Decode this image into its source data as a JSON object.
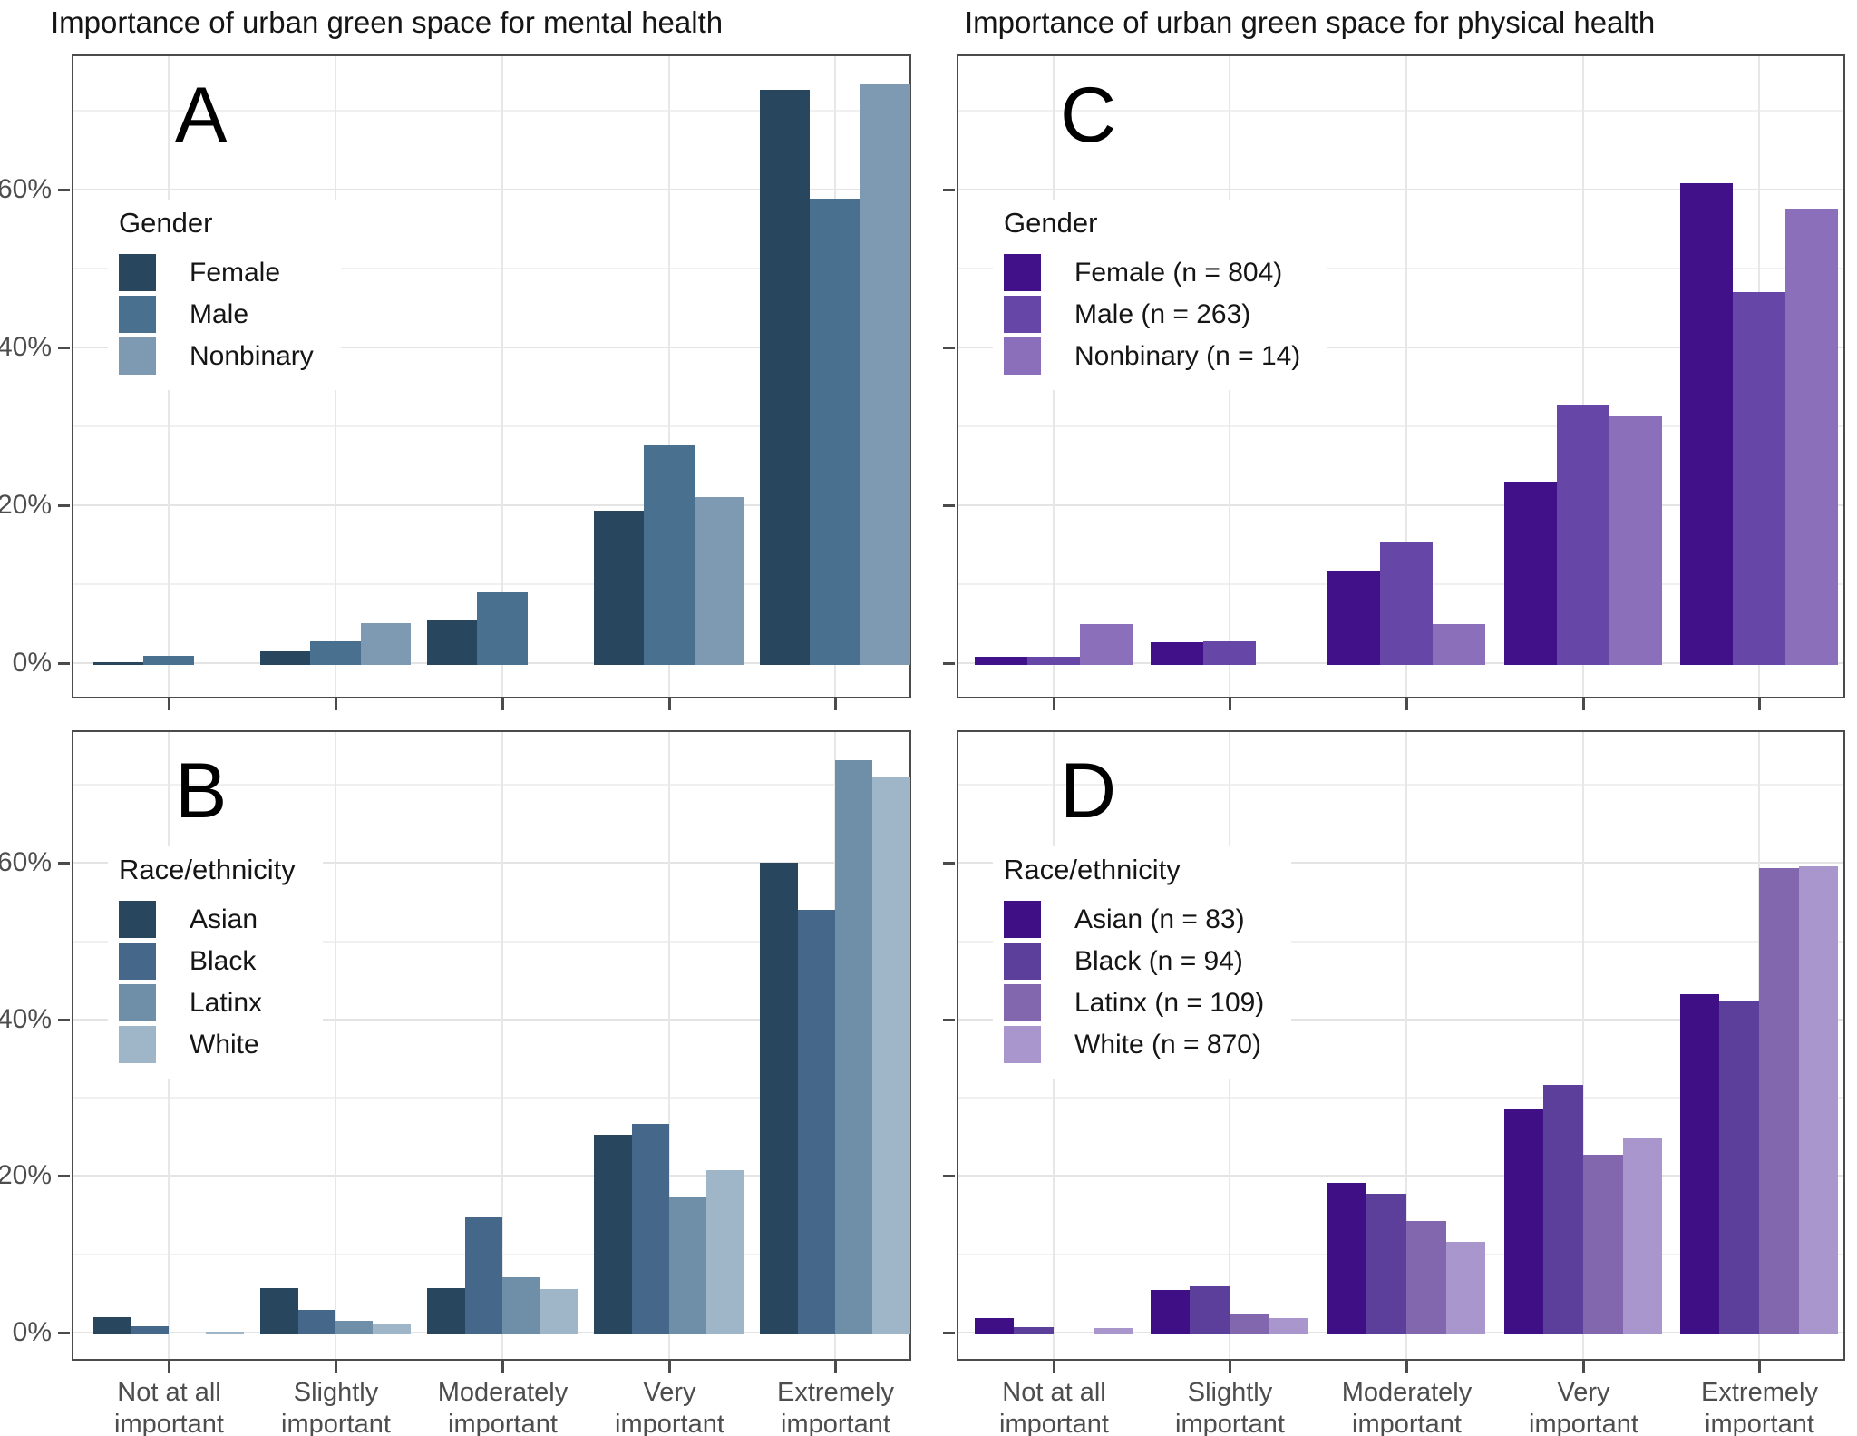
{
  "titles": {
    "left": "Importance of urban green space for mental health",
    "right": "Importance of urban green space for physical health"
  },
  "y_axis_ticks": [
    "0%",
    "20%",
    "40%",
    "60%"
  ],
  "chart_data": [
    {
      "type": "bar",
      "panel_label": "A",
      "title": "Importance of urban green space for mental health",
      "legend_title": "Gender",
      "legend_position": "upper-left-inside",
      "categories": [
        "Not at all important",
        "Slightly important",
        "Moderately important",
        "Very important",
        "Extremely important"
      ],
      "series": [
        {
          "name": "Female",
          "color": "#29465f",
          "values": [
            0.4,
            1.7,
            5.7,
            19.5,
            72.9
          ]
        },
        {
          "name": "Male",
          "color": "#4a708f",
          "values": [
            1.1,
            3.0,
            9.2,
            27.8,
            59.1
          ]
        },
        {
          "name": "Nonbinary",
          "color": "#7e9ab3",
          "values": [
            0,
            5.3,
            0,
            21.3,
            73.6
          ]
        }
      ],
      "ylabel": "",
      "ylim": [
        0,
        77
      ],
      "ytick_values": [
        0,
        20,
        40,
        60
      ],
      "grid": true
    },
    {
      "type": "bar",
      "panel_label": "B",
      "title": "Importance of urban green space for mental health",
      "legend_title": "Race/ethnicity",
      "legend_position": "upper-left-inside",
      "categories": [
        "Not at all important",
        "Slightly important",
        "Moderately important",
        "Very important",
        "Extremely important"
      ],
      "series": [
        {
          "name": "Asian",
          "color": "#29465f",
          "values": [
            2.2,
            5.9,
            5.9,
            25.5,
            60.3
          ]
        },
        {
          "name": "Black",
          "color": "#45688a",
          "values": [
            1.0,
            3.1,
            15.0,
            26.9,
            54.2
          ]
        },
        {
          "name": "Latinx",
          "color": "#6f8fa9",
          "values": [
            0,
            1.7,
            7.3,
            17.5,
            73.3
          ]
        },
        {
          "name": "White",
          "color": "#9fb6c8",
          "values": [
            0.3,
            1.4,
            5.8,
            21.0,
            71.2
          ]
        }
      ],
      "ylabel": "",
      "ylim": [
        0,
        77
      ],
      "ytick_values": [
        0,
        20,
        40,
        60
      ],
      "grid": true
    },
    {
      "type": "bar",
      "panel_label": "C",
      "title": "Importance of urban green space for physical health",
      "legend_title": "Gender",
      "legend_position": "upper-left-inside",
      "categories": [
        "Not at all important",
        "Slightly important",
        "Moderately important",
        "Very important",
        "Extremely important"
      ],
      "series": [
        {
          "name": "Female (n = 804)",
          "n": 804,
          "color": "#411189",
          "values": [
            1.0,
            2.9,
            12.0,
            23.2,
            61.0
          ]
        },
        {
          "name": "Male (n = 263)",
          "n": 263,
          "color": "#6646a6",
          "values": [
            1.0,
            3.0,
            15.6,
            33.0,
            47.3
          ]
        },
        {
          "name": "Nonbinary (n = 14)",
          "n": 14,
          "color": "#8c6fba",
          "values": [
            5.2,
            0,
            5.2,
            31.5,
            57.8
          ]
        }
      ],
      "ylabel": "",
      "ylim": [
        0,
        77
      ],
      "ytick_values": [
        0,
        20,
        40,
        60
      ],
      "grid": true
    },
    {
      "type": "bar",
      "panel_label": "D",
      "title": "Importance of urban green space for physical health",
      "legend_title": "Race/ethnicity",
      "legend_position": "upper-left-inside",
      "categories": [
        "Not at all important",
        "Slightly important",
        "Moderately important",
        "Very important",
        "Extremely important"
      ],
      "series": [
        {
          "name": "Asian (n = 83)",
          "n": 83,
          "color": "#3e0f85",
          "values": [
            2.1,
            5.7,
            19.3,
            28.9,
            43.5
          ]
        },
        {
          "name": "Black (n = 94)",
          "n": 94,
          "color": "#5c3f9b",
          "values": [
            0.9,
            6.2,
            18.0,
            31.9,
            42.7
          ]
        },
        {
          "name": "Latinx (n = 109)",
          "n": 109,
          "color": "#8266ae",
          "values": [
            0,
            2.6,
            14.5,
            22.9,
            59.6
          ]
        },
        {
          "name": "White (n = 870)",
          "n": 870,
          "color": "#a996cc",
          "values": [
            0.8,
            2.1,
            11.8,
            25.0,
            59.8
          ]
        }
      ],
      "ylabel": "",
      "ylim": [
        0,
        77
      ],
      "ytick_values": [
        0,
        20,
        40,
        60
      ],
      "grid": true
    }
  ]
}
